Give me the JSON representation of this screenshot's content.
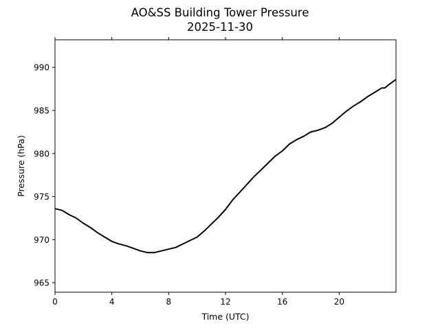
{
  "chart_data": {
    "type": "line",
    "title": "AO&SS Building Tower Pressure",
    "subtitle": "2025-11-30",
    "xlabel": "Time (UTC)",
    "ylabel": "Pressure (hPa)",
    "xlim": [
      0,
      24
    ],
    "ylim": [
      963.9,
      993.2
    ],
    "xticks": [
      0,
      4,
      8,
      12,
      16,
      20
    ],
    "yticks": [
      965,
      970,
      975,
      980,
      985,
      990
    ],
    "grid": false,
    "series": [
      {
        "name": "Pressure",
        "color": "#000000",
        "x": [
          0,
          0.5,
          1,
          1.5,
          2,
          2.5,
          3,
          3.5,
          4,
          4.5,
          5,
          5.5,
          6,
          6.5,
          7,
          7.5,
          8,
          8.5,
          9,
          9.5,
          10,
          10.5,
          11,
          11.5,
          12,
          12.5,
          13,
          13.5,
          14,
          14.5,
          15,
          15.5,
          16,
          16.5,
          17,
          17.5,
          18,
          18.5,
          19,
          19.5,
          20,
          20.5,
          21,
          21.5,
          22,
          22.5,
          23,
          23.2,
          23.5,
          24
        ],
        "y": [
          973.6,
          973.4,
          972.9,
          972.5,
          971.9,
          971.4,
          970.8,
          970.3,
          969.8,
          969.5,
          969.3,
          969.0,
          968.7,
          968.5,
          968.5,
          968.7,
          968.9,
          969.1,
          969.5,
          969.9,
          970.3,
          971.0,
          971.8,
          972.6,
          973.5,
          974.6,
          975.5,
          976.4,
          977.3,
          978.1,
          978.9,
          979.7,
          980.3,
          981.1,
          981.6,
          982.0,
          982.5,
          982.7,
          983.0,
          983.5,
          984.2,
          984.9,
          985.5,
          986.0,
          986.6,
          987.1,
          987.6,
          987.6,
          988.0,
          988.6
        ]
      }
    ]
  }
}
